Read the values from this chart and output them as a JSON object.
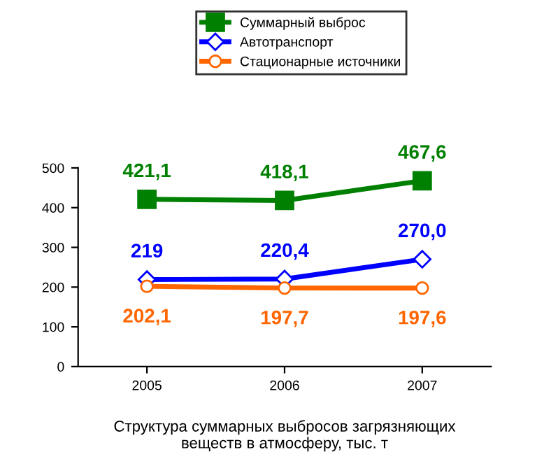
{
  "chart_data": {
    "type": "line",
    "categories": [
      "2005",
      "2006",
      "2007"
    ],
    "series": [
      {
        "name": "Суммарный выброс",
        "color": "#008000",
        "marker": "square",
        "values": [
          421.1,
          418.1,
          467.6
        ],
        "value_labels": [
          "421,1",
          "418,1",
          "467,6"
        ]
      },
      {
        "name": "Автотранспорт",
        "color": "#0000ff",
        "marker": "diamond",
        "values": [
          219,
          220.4,
          270.0
        ],
        "value_labels": [
          "219",
          "220,4",
          "270,0"
        ]
      },
      {
        "name": "Стационарные источники",
        "color": "#ff6600",
        "marker": "circle",
        "values": [
          202.1,
          197.7,
          197.6
        ],
        "value_labels": [
          "202,1",
          "197,7",
          "197,6"
        ]
      }
    ],
    "xlabel": "Структура суммарных выбросов загрязняющих\nвеществ в атмосферу, тыс. т",
    "ylim": [
      0,
      500
    ],
    "yticks": [
      0,
      100,
      200,
      300,
      400,
      500
    ],
    "grid": false,
    "legend": "top",
    "line_style": "solid"
  }
}
